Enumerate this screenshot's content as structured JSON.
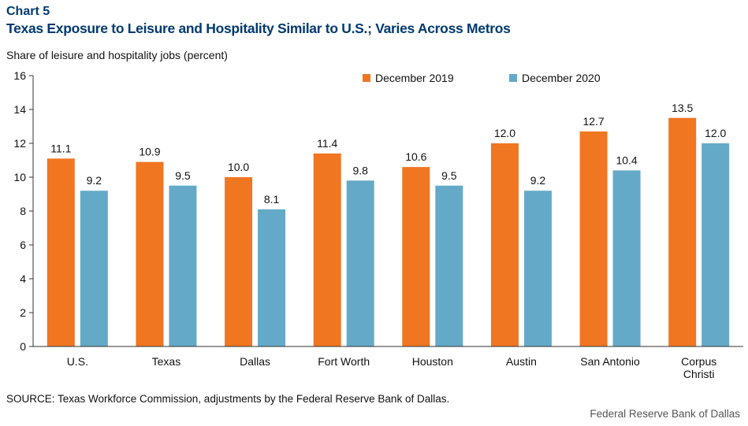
{
  "header": {
    "chart_label": "Chart 5",
    "title": "Texas Exposure to Leisure and Hospitality Similar to U.S.; Varies Across Metros"
  },
  "footer": {
    "source": "SOURCE: Texas Workforce Commission, adjustments by the Federal Reserve Bank of Dallas.",
    "credit": "Federal Reserve Bank of Dallas"
  },
  "colors": {
    "dec2019": "#f07622",
    "dec2020": "#64aac8",
    "axis": "#333333"
  },
  "chart_data": {
    "type": "bar",
    "title": "Texas Exposure to Leisure and Hospitality Similar to U.S.; Varies Across Metros",
    "xlabel": "",
    "ylabel": "Share of leisure and hospitality jobs (percent)",
    "ylim": [
      0,
      16
    ],
    "yticks": [
      0,
      2,
      4,
      6,
      8,
      10,
      12,
      14,
      16
    ],
    "categories": [
      "U.S.",
      "Texas",
      "Dallas",
      "Fort Worth",
      "Houston",
      "Austin",
      "San Antonio",
      "Corpus Christi"
    ],
    "category_lines": [
      [
        "U.S."
      ],
      [
        "Texas"
      ],
      [
        "Dallas"
      ],
      [
        "Fort Worth"
      ],
      [
        "Houston"
      ],
      [
        "Austin"
      ],
      [
        "San Antonio"
      ],
      [
        "Corpus",
        "Christi"
      ]
    ],
    "series": [
      {
        "name": "December 2019",
        "values": [
          11.1,
          10.9,
          10.0,
          11.4,
          10.6,
          12.0,
          12.7,
          13.5
        ],
        "labels": [
          "11.1",
          "10.9",
          "10.0",
          "11.4",
          "10.6",
          "12.0",
          "12.7",
          "13.5"
        ]
      },
      {
        "name": "December 2020",
        "values": [
          9.2,
          9.5,
          8.1,
          9.8,
          9.5,
          9.2,
          10.4,
          12.0
        ],
        "labels": [
          "9.2",
          "9.5",
          "8.1",
          "9.8",
          "9.5",
          "9.2",
          "10.4",
          "12.0"
        ]
      }
    ],
    "grid": false,
    "legend_position": "top-right"
  }
}
